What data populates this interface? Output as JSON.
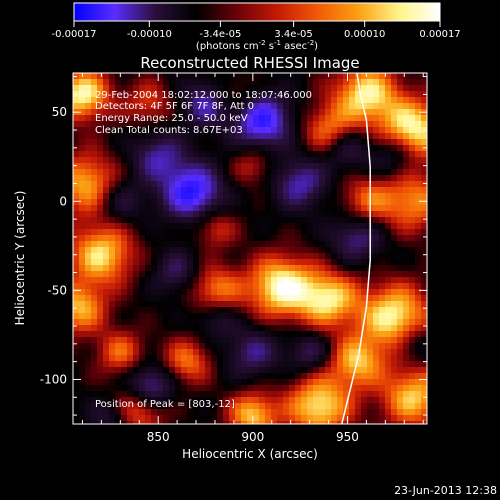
{
  "colorbar": {
    "ticks": [
      "-0.00017",
      "-0.00010",
      "-3.4e-05",
      "3.4e-05",
      "0.00010",
      "0.00017"
    ],
    "unit_label": "(photons cm^-2 s^-1 asec^-2)",
    "stops": [
      "#0000ff",
      "#5a2dff",
      "#2a0f3a",
      "#000000",
      "#6a0008",
      "#c41a06",
      "#f25a06",
      "#fca114",
      "#fff58a",
      "#ffffff"
    ]
  },
  "chart_data": {
    "type": "heatmap",
    "title": "Reconstructed RHESSI Image",
    "xlabel": "Heliocentric X (arcsec)",
    "ylabel": "Heliocentric Y (arcsec)",
    "xlim": [
      805,
      992
    ],
    "ylim": [
      -125,
      72
    ],
    "xticks": [
      850,
      900,
      950
    ],
    "yticks": [
      50,
      0,
      -50,
      -100
    ],
    "colorbar_range": [
      -0.00017,
      0.00017
    ],
    "annotations": [
      "29-Feb-2004 18:02:12.000 to 18:07:46.000",
      "Detectors: 4F 5F 6F 7F 8F, Att 0",
      "Energy Range: 25.0 - 50.0 keV",
      "Clean    Total counts: 8.67E+03"
    ],
    "peak_label": "Position of Peak = [803,-12]",
    "limb_curve_x": [
      955,
      957,
      960,
      961,
      962,
      962,
      962,
      962,
      962,
      961,
      960,
      958,
      956,
      953,
      950,
      947
    ]
  },
  "footer": {
    "timestamp": "23-Jun-2013 12:38"
  }
}
